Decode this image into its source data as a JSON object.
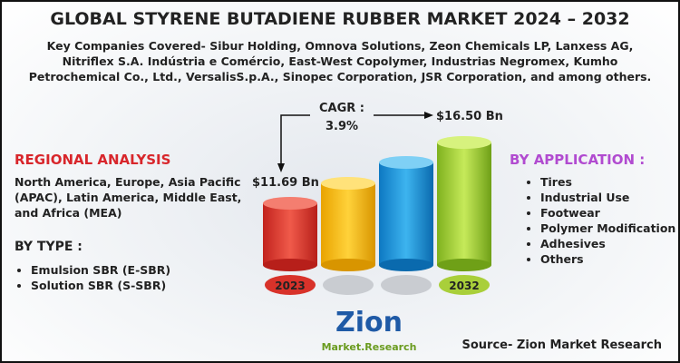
{
  "header": {
    "title": "GLOBAL STYRENE BUTADIENE RUBBER MARKET 2024 – 2032",
    "companies": "Key Companies Covered- Sibur Holding, Omnova Solutions, Zeon Chemicals LP, Lanxess AG, Nitriflex S.A. Indústria e Comércio, East-West Copolymer, Industrias Negromex, Kumho Petrochemical Co., Ltd., VersalisS.p.A., Sinopec Corporation, JSR Corporation, and among others."
  },
  "cagr": {
    "label": "CAGR :",
    "value": "3.9%"
  },
  "market": {
    "start": "$11.69 Bn",
    "end": "$16.50 Bn",
    "years": [
      "2023",
      "2032"
    ]
  },
  "regional": {
    "title": "REGIONAL ANALYSIS",
    "text": "North America, Europe, Asia Pacific (APAC), Latin America, Middle East, and Africa (MEA)"
  },
  "by_type": {
    "title": "BY TYPE :",
    "items": [
      "Emulsion SBR (E-SBR)",
      "Solution SBR (S-SBR)"
    ]
  },
  "by_application": {
    "title": "BY APPLICATION :",
    "items": [
      "Tires",
      "Industrial Use",
      "Footwear",
      "Polymer Modification",
      "Adhesives",
      "Others"
    ]
  },
  "logo": {
    "name": "Zion",
    "tagline": "Market.Research"
  },
  "source": "Source- Zion Market Research"
}
